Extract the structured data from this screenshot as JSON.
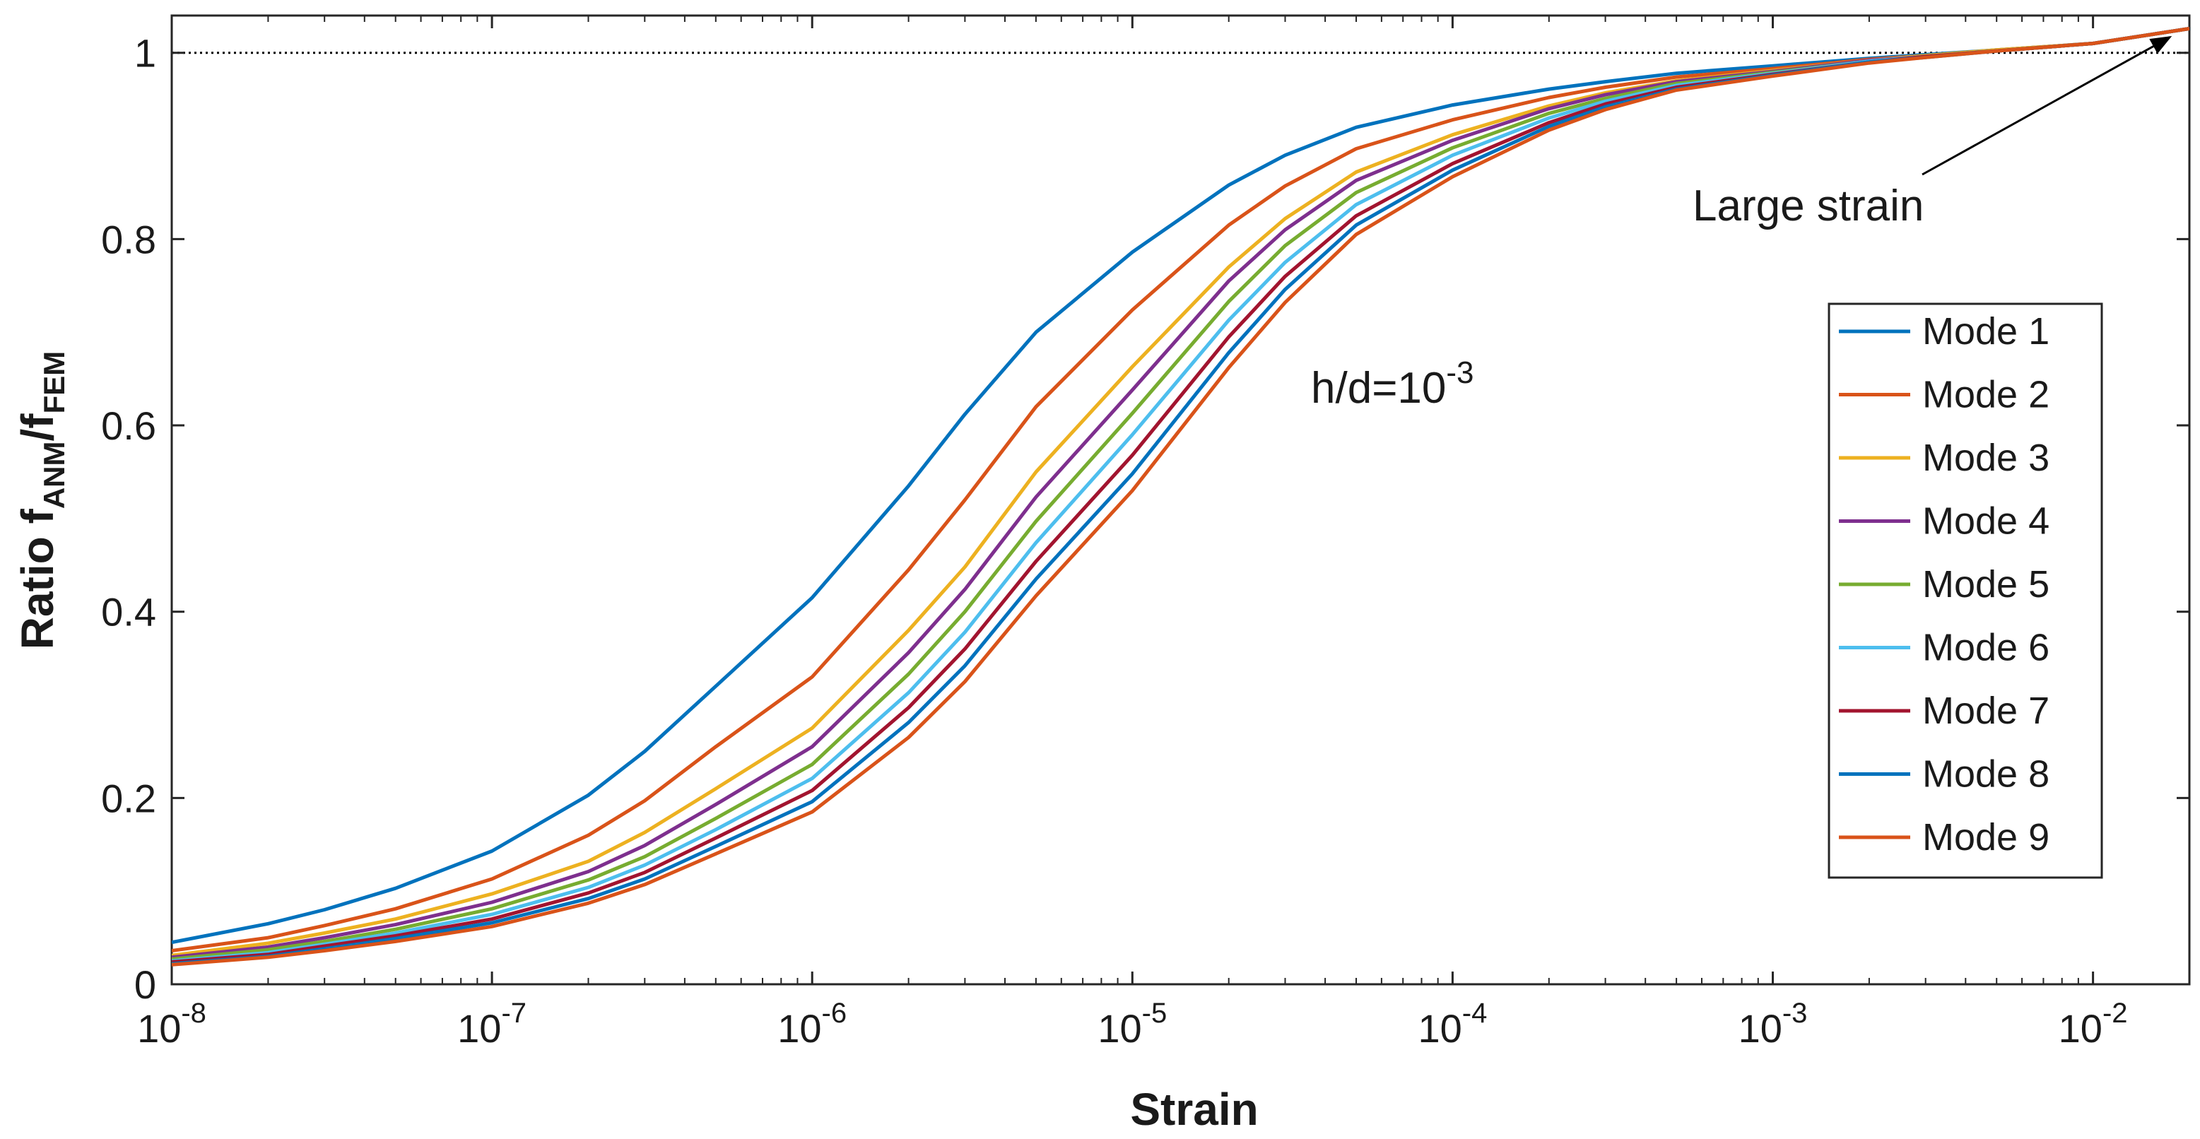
{
  "chart_data": {
    "type": "line",
    "xscale": "log",
    "xlabel": "Strain",
    "ylabel": {
      "base": "Ratio f",
      "sub1": "ANM",
      "mid": "/f",
      "sub2": "FEM"
    },
    "xlim": [
      1e-08,
      0.02
    ],
    "ylim": [
      0,
      1.04
    ],
    "x_ticks": [
      {
        "value": 1e-08,
        "base": "10",
        "exp": "-8"
      },
      {
        "value": 1e-07,
        "base": "10",
        "exp": "-7"
      },
      {
        "value": 1e-06,
        "base": "10",
        "exp": "-6"
      },
      {
        "value": 1e-05,
        "base": "10",
        "exp": "-5"
      },
      {
        "value": 0.0001,
        "base": "10",
        "exp": "-4"
      },
      {
        "value": 0.001,
        "base": "10",
        "exp": "-3"
      },
      {
        "value": 0.01,
        "base": "10",
        "exp": "-2"
      }
    ],
    "y_ticks": [
      {
        "value": 0,
        "label": "0"
      },
      {
        "value": 0.2,
        "label": "0.2"
      },
      {
        "value": 0.4,
        "label": "0.4"
      },
      {
        "value": 0.6,
        "label": "0.6"
      },
      {
        "value": 0.8,
        "label": "0.8"
      },
      {
        "value": 1,
        "label": "1"
      }
    ],
    "reference_line": {
      "y": 1,
      "style": "dotted",
      "color": "#000000"
    },
    "x": [
      1e-08,
      2e-08,
      3e-08,
      5e-08,
      1e-07,
      2e-07,
      3e-07,
      5e-07,
      1e-06,
      2e-06,
      3e-06,
      5e-06,
      1e-05,
      2e-05,
      3e-05,
      5e-05,
      0.0001,
      0.0002,
      0.0003,
      0.0005,
      0.001,
      0.002,
      0.003,
      0.005,
      0.01,
      0.02
    ],
    "series": [
      {
        "name": "Mode 1",
        "color": "#0072BD",
        "values": [
          0.045,
          0.065,
          0.08,
          0.103,
          0.143,
          0.203,
          0.25,
          0.32,
          0.415,
          0.535,
          0.612,
          0.7,
          0.786,
          0.858,
          0.89,
          0.92,
          0.944,
          0.961,
          0.969,
          0.978,
          0.986,
          0.994,
          0.998,
          1.003,
          1.01,
          1.026
        ]
      },
      {
        "name": "Mode 2",
        "color": "#D95319",
        "values": [
          0.036,
          0.05,
          0.063,
          0.081,
          0.113,
          0.16,
          0.197,
          0.255,
          0.33,
          0.445,
          0.52,
          0.62,
          0.724,
          0.815,
          0.857,
          0.897,
          0.928,
          0.952,
          0.963,
          0.974,
          0.983,
          0.993,
          0.997,
          1.003,
          1.01,
          1.026
        ]
      },
      {
        "name": "Mode 3",
        "color": "#EDB120",
        "values": [
          0.031,
          0.044,
          0.055,
          0.07,
          0.097,
          0.132,
          0.163,
          0.21,
          0.275,
          0.38,
          0.448,
          0.55,
          0.663,
          0.77,
          0.822,
          0.872,
          0.912,
          0.943,
          0.957,
          0.97,
          0.981,
          0.992,
          0.997,
          1.003,
          1.01,
          1.026
        ]
      },
      {
        "name": "Mode 4",
        "color": "#7E2F8E",
        "values": [
          0.029,
          0.04,
          0.05,
          0.064,
          0.088,
          0.121,
          0.149,
          0.193,
          0.255,
          0.356,
          0.424,
          0.523,
          0.638,
          0.755,
          0.81,
          0.863,
          0.906,
          0.94,
          0.955,
          0.969,
          0.98,
          0.992,
          0.996,
          1.002,
          1.01,
          1.026
        ]
      },
      {
        "name": "Mode 5",
        "color": "#77AC30",
        "values": [
          0.027,
          0.037,
          0.046,
          0.059,
          0.081,
          0.112,
          0.137,
          0.178,
          0.236,
          0.333,
          0.4,
          0.497,
          0.613,
          0.733,
          0.793,
          0.85,
          0.898,
          0.935,
          0.951,
          0.967,
          0.979,
          0.991,
          0.996,
          1.002,
          1.01,
          1.026
        ]
      },
      {
        "name": "Mode 6",
        "color": "#4DBEEE",
        "values": [
          0.025,
          0.034,
          0.043,
          0.055,
          0.075,
          0.104,
          0.128,
          0.166,
          0.221,
          0.313,
          0.378,
          0.474,
          0.59,
          0.713,
          0.775,
          0.837,
          0.89,
          0.93,
          0.948,
          0.965,
          0.978,
          0.991,
          0.996,
          1.002,
          1.01,
          1.026
        ]
      },
      {
        "name": "Mode 7",
        "color": "#A2142F",
        "values": [
          0.024,
          0.032,
          0.041,
          0.052,
          0.07,
          0.098,
          0.12,
          0.157,
          0.208,
          0.297,
          0.36,
          0.454,
          0.568,
          0.695,
          0.76,
          0.825,
          0.881,
          0.925,
          0.945,
          0.963,
          0.977,
          0.99,
          0.996,
          1.002,
          1.01,
          1.026
        ]
      },
      {
        "name": "Mode 8",
        "color": "#0072BD",
        "values": [
          0.022,
          0.03,
          0.038,
          0.049,
          0.066,
          0.092,
          0.113,
          0.148,
          0.196,
          0.281,
          0.342,
          0.435,
          0.548,
          0.678,
          0.746,
          0.815,
          0.874,
          0.921,
          0.942,
          0.961,
          0.976,
          0.99,
          0.995,
          1.002,
          1.01,
          1.026
        ]
      },
      {
        "name": "Mode 9",
        "color": "#D95319",
        "values": [
          0.021,
          0.029,
          0.036,
          0.046,
          0.062,
          0.087,
          0.107,
          0.14,
          0.185,
          0.265,
          0.325,
          0.417,
          0.53,
          0.662,
          0.732,
          0.805,
          0.867,
          0.917,
          0.939,
          0.96,
          0.975,
          0.989,
          0.995,
          1.002,
          1.01,
          1.026
        ]
      }
    ],
    "annotations": [
      {
        "id": "hd",
        "base": "h/d=10",
        "exp": "-3"
      },
      {
        "id": "large-strain",
        "text": "Large strain",
        "arrow_to": {
          "x": 0.0174,
          "y": 1.026
        }
      }
    ],
    "legend_position": "right"
  }
}
